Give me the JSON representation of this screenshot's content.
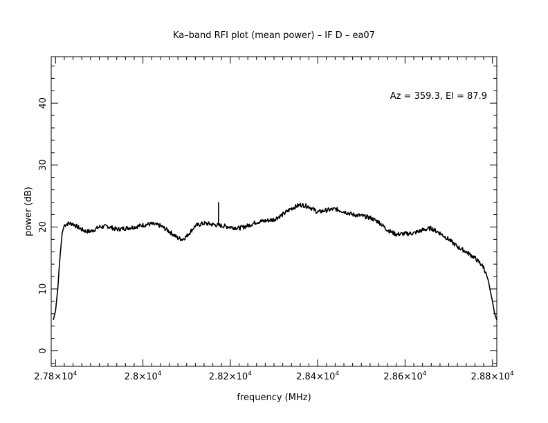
{
  "chart_data": {
    "type": "line",
    "title": "Ka–band RFI plot (mean power) – IF D – ea07",
    "xlabel": "frequency (MHz)",
    "ylabel": "power (dB)",
    "annotation": "Az = 359.3, El = 87.9",
    "xlim": [
      27790,
      28810
    ],
    "ylim": [
      -2.5,
      47.5
    ],
    "x_ticks": [
      {
        "value": 27800,
        "label_mantissa": "2.78",
        "label_exp": "4"
      },
      {
        "value": 28000,
        "label_mantissa": "2.8",
        "label_exp": "4"
      },
      {
        "value": 28200,
        "label_mantissa": "2.82",
        "label_exp": "4"
      },
      {
        "value": 28400,
        "label_mantissa": "2.84",
        "label_exp": "4"
      },
      {
        "value": 28600,
        "label_mantissa": "2.86",
        "label_exp": "4"
      },
      {
        "value": 28800,
        "label_mantissa": "2.88",
        "label_exp": "4"
      }
    ],
    "x_label_base": "×10",
    "y_ticks": [
      {
        "value": 0,
        "label": "0"
      },
      {
        "value": 10,
        "label": "10"
      },
      {
        "value": 20,
        "label": "20"
      },
      {
        "value": 30,
        "label": "30"
      },
      {
        "value": 40,
        "label": "40"
      }
    ],
    "grid": false,
    "line_color": "#000000",
    "series": [
      {
        "x": [
          27795,
          27800,
          27805,
          27810,
          27815,
          27820,
          27830,
          27840,
          27850,
          27860,
          27870,
          27880,
          27890,
          27900,
          27920,
          27940,
          27960,
          27980,
          28000,
          28020,
          28040,
          28060,
          28080,
          28090,
          28100,
          28120,
          28140,
          28160,
          28180,
          28200,
          28220,
          28240,
          28260,
          28280,
          28300,
          28320,
          28340,
          28360,
          28380,
          28400,
          28420,
          28440,
          28460,
          28480,
          28500,
          28520,
          28540,
          28560,
          28580,
          28600,
          28620,
          28640,
          28660,
          28680,
          28700,
          28720,
          28740,
          28760,
          28780,
          28790,
          28800,
          28805,
          28810
        ],
        "y": [
          5,
          6.5,
          10,
          15,
          19,
          20.3,
          20.6,
          20.5,
          20.0,
          19.6,
          19.3,
          19.3,
          19.6,
          20.0,
          20.1,
          19.6,
          19.8,
          20.0,
          20.3,
          20.5,
          20.2,
          19.3,
          18.2,
          18.0,
          18.5,
          20.2,
          20.6,
          20.4,
          20.2,
          20.0,
          19.8,
          20.2,
          20.8,
          21.0,
          21.2,
          22.0,
          23.0,
          23.6,
          23.3,
          22.4,
          22.7,
          22.9,
          22.5,
          22.0,
          21.8,
          21.5,
          20.8,
          19.5,
          18.8,
          18.9,
          19.0,
          19.5,
          19.8,
          19.0,
          18.0,
          16.8,
          16.0,
          15.0,
          13.5,
          11.5,
          8.0,
          6.0,
          5
        ]
      }
    ],
    "spike": {
      "x": 28173,
      "y_base": 20.4,
      "y_top": 24.0
    }
  }
}
